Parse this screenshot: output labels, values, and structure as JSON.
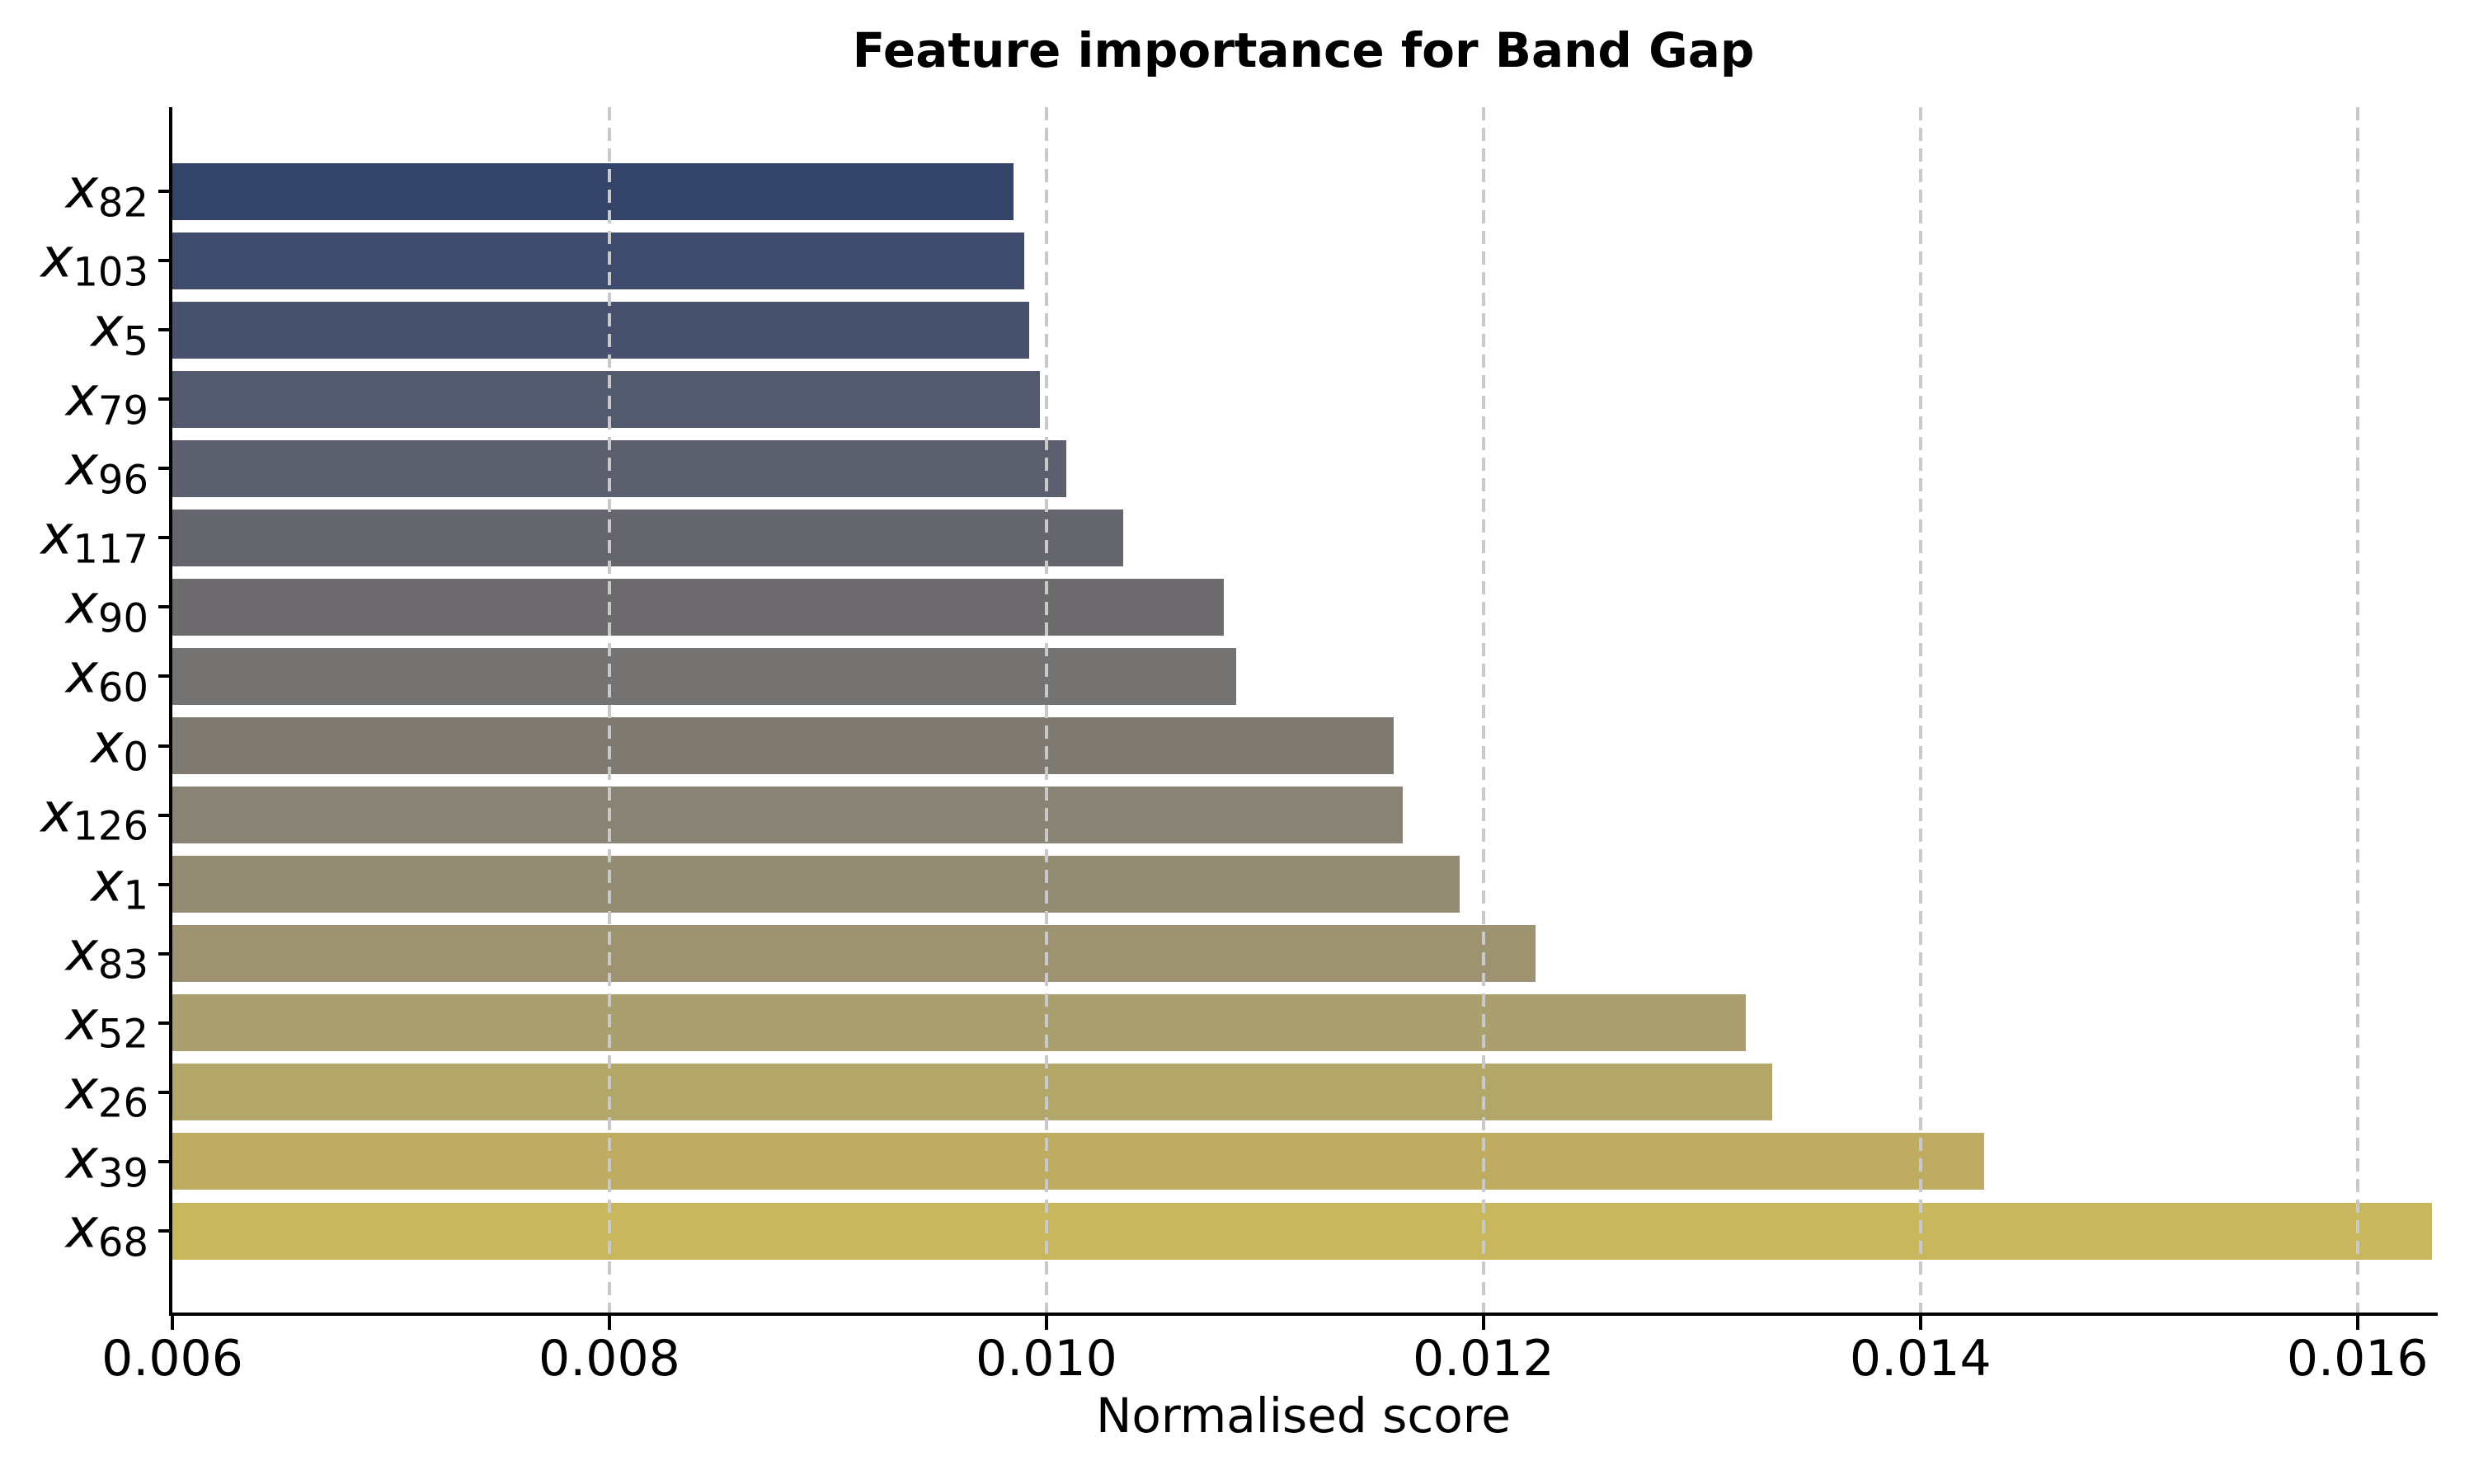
{
  "figure": {
    "background": "#ffffff",
    "text_color": "#000000",
    "axis_color": "#000000"
  },
  "chart_data": {
    "type": "bar",
    "orientation": "horizontal",
    "title": "Feature importance for Band Gap",
    "xlabel": "Normalised score",
    "ylabel": "",
    "legend": null,
    "grid": {
      "axis": "x",
      "style": "dashed",
      "color": "#c9c9c9",
      "on_top": true
    },
    "xlim": [
      0.006,
      0.016352
    ],
    "xticks": [
      {
        "value": 0.006,
        "label": "0.006"
      },
      {
        "value": 0.008,
        "label": "0.008"
      },
      {
        "value": 0.01,
        "label": "0.010"
      },
      {
        "value": 0.012,
        "label": "0.012"
      },
      {
        "value": 0.014,
        "label": "0.014"
      },
      {
        "value": 0.016,
        "label": "0.016"
      }
    ],
    "features": [
      {
        "base": "x",
        "sub": "82",
        "value": 0.00985,
        "color": "#344569"
      },
      {
        "base": "x",
        "sub": "103",
        "value": 0.0099,
        "color": "#3e4b6c"
      },
      {
        "base": "x",
        "sub": "5",
        "value": 0.00992,
        "color": "#48516e"
      },
      {
        "base": "x",
        "sub": "79",
        "value": 0.00997,
        "color": "#535a6d"
      },
      {
        "base": "x",
        "sub": "96",
        "value": 0.01009,
        "color": "#5c5f6e"
      },
      {
        "base": "x",
        "sub": "117",
        "value": 0.01035,
        "color": "#65656e"
      },
      {
        "base": "x",
        "sub": "90",
        "value": 0.01081,
        "color": "#6e6b6e"
      },
      {
        "base": "x",
        "sub": "60",
        "value": 0.01087,
        "color": "#757372"
      },
      {
        "base": "x",
        "sub": "0",
        "value": 0.01159,
        "color": "#7f7b72"
      },
      {
        "base": "x",
        "sub": "126",
        "value": 0.01163,
        "color": "#898376"
      },
      {
        "base": "x",
        "sub": "1",
        "value": 0.01189,
        "color": "#938c73"
      },
      {
        "base": "x",
        "sub": "83",
        "value": 0.01224,
        "color": "#9d9370"
      },
      {
        "base": "x",
        "sub": "52",
        "value": 0.0132,
        "color": "#aa9f6f"
      },
      {
        "base": "x",
        "sub": "26",
        "value": 0.01332,
        "color": "#b3a669"
      },
      {
        "base": "x",
        "sub": "39",
        "value": 0.01429,
        "color": "#bdac62"
      },
      {
        "base": "x",
        "sub": "68",
        "value": 0.01634,
        "color": "#c9b75f"
      }
    ]
  }
}
